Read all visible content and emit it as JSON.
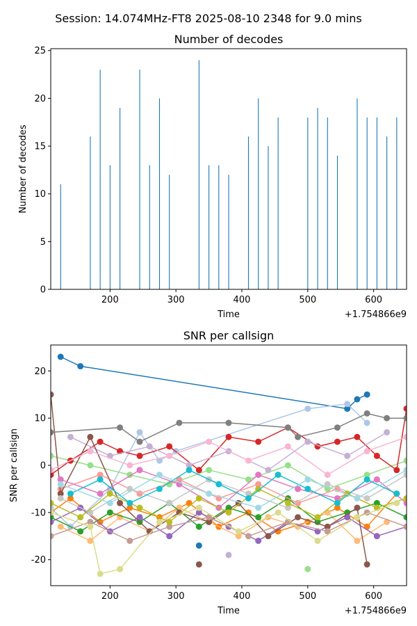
{
  "figure": {
    "suptitle": "Session: 14.074MHz-FT8 2025-08-10 2348 for 9.0 mins"
  },
  "chart_data": [
    {
      "type": "bar",
      "title": "Number of decodes",
      "xlabel": "Time",
      "ylabel": "Number of decodes",
      "x_offset_label": "+1.754866e9",
      "xlim": [
        110,
        650
      ],
      "ylim": [
        0,
        25.2
      ],
      "xticks": [
        200,
        300,
        400,
        500,
        600
      ],
      "yticks": [
        0,
        5,
        10,
        15,
        20,
        25
      ],
      "bar_color": "#1f77b4",
      "x": [
        125,
        170,
        185,
        200,
        215,
        245,
        260,
        275,
        290,
        335,
        350,
        365,
        380,
        410,
        425,
        440,
        455,
        500,
        515,
        530,
        545,
        575,
        590,
        605,
        620,
        635
      ],
      "values": [
        11,
        16,
        23,
        13,
        19,
        23,
        13,
        20,
        12,
        24,
        13,
        13,
        12,
        16,
        20,
        15,
        18,
        18,
        19,
        18,
        14,
        20,
        18,
        18,
        16,
        18
      ]
    },
    {
      "type": "line",
      "title": "SNR per callsign",
      "xlabel": "Time",
      "ylabel": "SNR per callsign",
      "x_offset_label": "+1.754866e9",
      "xlim": [
        110,
        650
      ],
      "ylim": [
        -25.5,
        25.5
      ],
      "xticks": [
        200,
        300,
        400,
        500,
        600
      ],
      "yticks": [
        -20,
        -10,
        0,
        10,
        20
      ],
      "series": [
        {
          "color": "#1f77b4",
          "x": [
            125,
            155,
            560,
            575,
            590
          ],
          "values": [
            23,
            21,
            12,
            14,
            15
          ]
        },
        {
          "color": "#aec7e8",
          "x": [
            110,
            140,
            200,
            245,
            275,
            300,
            500,
            560,
            590
          ],
          "values": [
            -9,
            -13,
            -5,
            7,
            1,
            3,
            12,
            13,
            9
          ]
        },
        {
          "color": "#ff7f0e",
          "x": [
            110,
            140,
            185,
            230,
            275,
            320,
            365,
            410,
            455,
            500,
            545,
            590,
            635
          ],
          "values": [
            -10,
            -7,
            -12,
            -9,
            -11,
            -8,
            -13,
            -10,
            -14,
            -12,
            -9,
            -13,
            -6
          ]
        },
        {
          "color": "#ffbb78",
          "x": [
            125,
            170,
            215,
            260,
            305,
            350,
            395,
            440,
            485,
            530,
            575,
            620
          ],
          "values": [
            -13,
            -16,
            -11,
            -14,
            -9,
            -12,
            -15,
            -11,
            -13,
            -10,
            -16,
            -12
          ]
        },
        {
          "color": "#2ca02c",
          "x": [
            110,
            155,
            200,
            245,
            290,
            335,
            380,
            425,
            470,
            515,
            560,
            605,
            650
          ],
          "values": [
            -11,
            -14,
            -10,
            -12,
            -8,
            -13,
            -9,
            -11,
            -7,
            -12,
            -10,
            -8,
            -11
          ]
        },
        {
          "color": "#98df8a",
          "x": [
            110,
            170,
            230,
            290,
            350,
            410,
            470,
            530,
            590,
            650
          ],
          "values": [
            2,
            0,
            -2,
            -4,
            -1,
            -3,
            0,
            -5,
            -2,
            1
          ]
        },
        {
          "color": "#d62728",
          "x": [
            110,
            140,
            185,
            215,
            245,
            290,
            335,
            380,
            425,
            470,
            515,
            545,
            575,
            605,
            635,
            650
          ],
          "values": [
            -2,
            1,
            5,
            3,
            2,
            4,
            -1,
            6,
            5,
            8,
            4,
            5,
            6,
            2,
            -1,
            12
          ]
        },
        {
          "color": "#ff9896",
          "x": [
            125,
            185,
            245,
            305,
            365,
            425,
            485,
            545,
            605
          ],
          "values": [
            -5,
            -2,
            -6,
            -3,
            -7,
            -4,
            -8,
            -5,
            -9
          ]
        },
        {
          "color": "#9467bd",
          "x": [
            110,
            155,
            200,
            245,
            290,
            335,
            380,
            425,
            470,
            515,
            560,
            605,
            650
          ],
          "values": [
            -12,
            -9,
            -14,
            -11,
            -15,
            -10,
            -13,
            -16,
            -12,
            -14,
            -11,
            -15,
            -13
          ]
        },
        {
          "color": "#c5b0d5",
          "x": [
            140,
            200,
            260,
            320,
            380,
            440,
            500,
            560,
            620
          ],
          "values": [
            6,
            2,
            4,
            0,
            3,
            -1,
            5,
            2,
            7
          ]
        },
        {
          "color": "#8c564b",
          "x": [
            110,
            125,
            170,
            215,
            260,
            305,
            350,
            395,
            440,
            485,
            530,
            575,
            590
          ],
          "values": [
            15,
            -6,
            6,
            -8,
            -14,
            -10,
            -12,
            -8,
            -15,
            -11,
            -13,
            -9,
            -21
          ]
        },
        {
          "color": "#c49c94",
          "x": [
            110,
            170,
            230,
            290,
            350,
            410,
            470,
            530,
            590,
            650
          ],
          "values": [
            -15,
            -12,
            -16,
            -13,
            -11,
            -15,
            -12,
            -14,
            -10,
            -13
          ]
        },
        {
          "color": "#e377c2",
          "x": [
            125,
            185,
            245,
            305,
            365,
            425,
            485,
            545,
            605,
            650
          ],
          "values": [
            -3,
            -6,
            -1,
            -4,
            -9,
            -2,
            -5,
            -7,
            -3,
            -8
          ]
        },
        {
          "color": "#f7b6d2",
          "x": [
            110,
            170,
            230,
            290,
            350,
            410,
            470,
            530,
            590,
            650
          ],
          "values": [
            -1,
            3,
            0,
            2,
            5,
            1,
            4,
            -2,
            3,
            6
          ]
        },
        {
          "color": "#7f7f7f",
          "x": [
            110,
            215,
            245,
            305,
            380,
            470,
            485,
            545,
            590,
            620,
            650
          ],
          "values": [
            7,
            8,
            5,
            9,
            9,
            8,
            6,
            8,
            11,
            10,
            10
          ]
        },
        {
          "color": "#c7c7c7",
          "x": [
            125,
            170,
            230,
            290,
            350,
            410,
            470,
            530,
            590,
            650
          ],
          "values": [
            -7,
            -10,
            -5,
            -8,
            -3,
            -6,
            -9,
            -4,
            -7,
            -2
          ]
        },
        {
          "color": "#bcbd22",
          "x": [
            110,
            155,
            200,
            245,
            290,
            335,
            380,
            425,
            470,
            515,
            560,
            605,
            650
          ],
          "values": [
            -8,
            -11,
            -6,
            -9,
            -12,
            -7,
            -10,
            -5,
            -8,
            -11,
            -6,
            -9,
            -7
          ]
        },
        {
          "color": "#dbdb8d",
          "x": [
            110,
            170,
            185,
            215,
            275,
            335,
            395,
            455,
            515,
            575,
            635
          ],
          "values": [
            -10,
            -13,
            -23,
            -22,
            -12,
            -9,
            -14,
            -10,
            -16,
            -11,
            -8
          ]
        },
        {
          "color": "#17becf",
          "x": [
            140,
            185,
            230,
            275,
            320,
            365,
            410,
            455,
            500,
            545,
            590,
            635
          ],
          "values": [
            -6,
            -3,
            -8,
            -5,
            -1,
            -4,
            -7,
            -2,
            -5,
            -8,
            -3,
            -6
          ]
        },
        {
          "color": "#9edae5",
          "x": [
            125,
            200,
            275,
            350,
            425,
            500,
            575,
            650
          ],
          "values": [
            -4,
            -8,
            -2,
            -6,
            -9,
            -3,
            -7,
            -1
          ]
        }
      ],
      "single_points": [
        {
          "color": "#8c564b",
          "x": 335,
          "value": -21
        },
        {
          "color": "#98df8a",
          "x": 500,
          "value": -22
        },
        {
          "color": "#c5b0d5",
          "x": 380,
          "value": -19
        },
        {
          "color": "#1f77b4",
          "x": 335,
          "value": -17
        }
      ]
    }
  ]
}
